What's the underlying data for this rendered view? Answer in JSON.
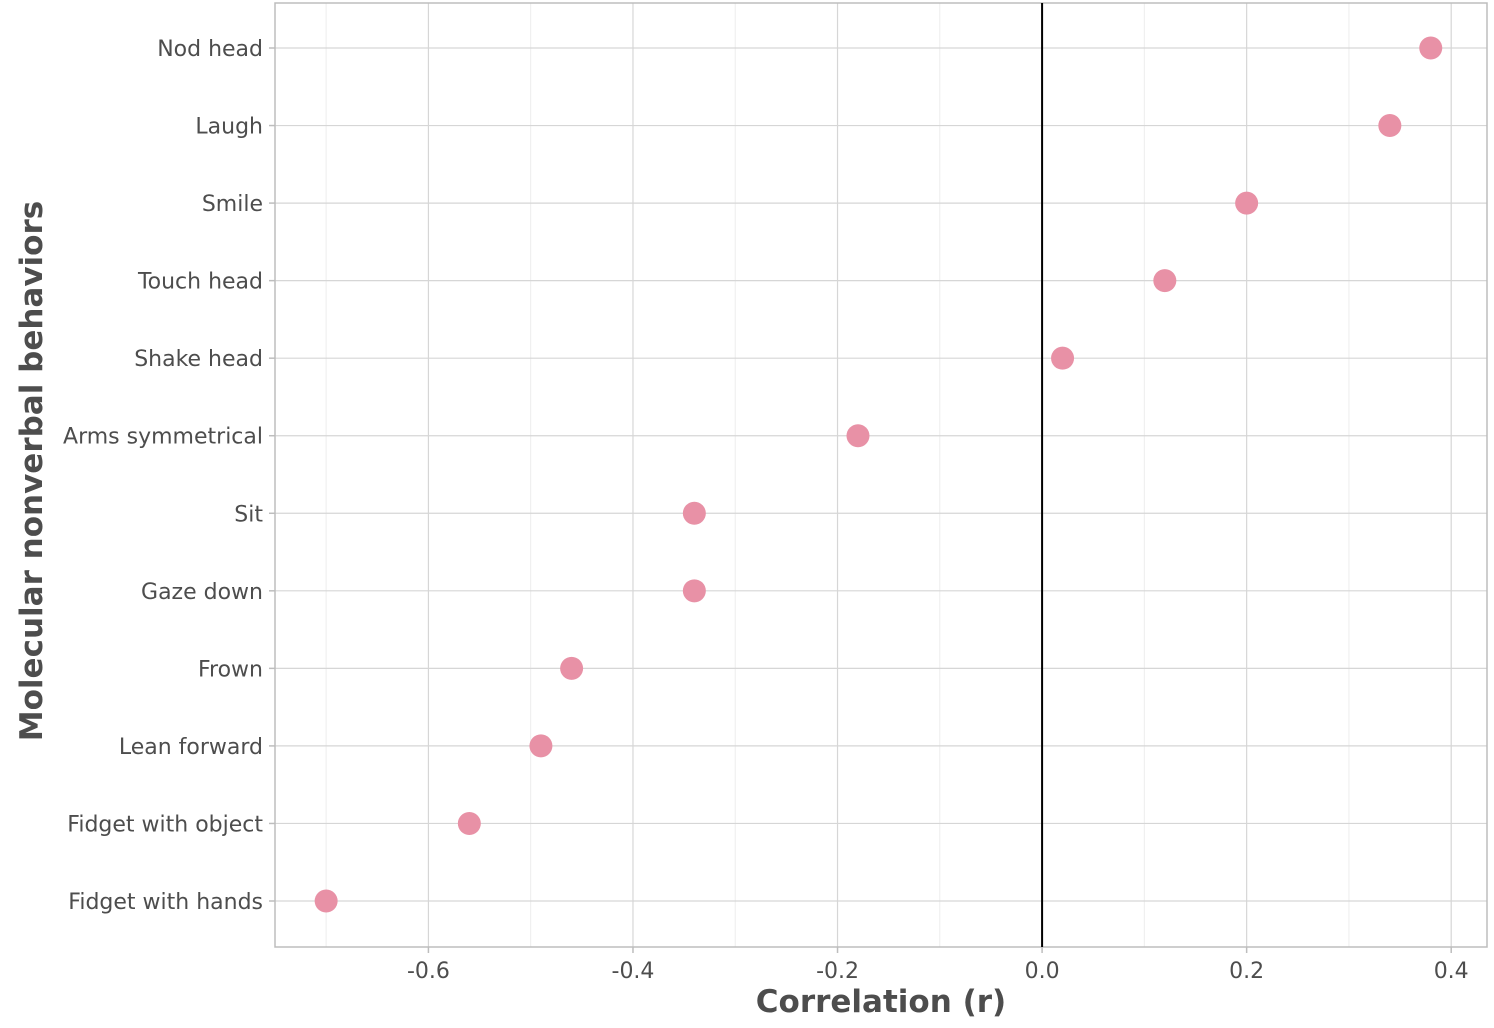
{
  "chart_data": {
    "type": "scatter",
    "title": "",
    "xlabel": "Correlation (r)",
    "ylabel": "Molecular nonverbal behaviors",
    "xlim": [
      -0.75,
      0.435
    ],
    "xticks": [
      -0.6,
      -0.4,
      -0.2,
      0.0,
      0.2,
      0.4
    ],
    "xtick_labels": [
      "-0.6",
      "-0.4",
      "-0.2",
      "0.0",
      "0.2",
      "0.4"
    ],
    "grid": true,
    "reference_line_x": 0.0,
    "point_color": "#e891a6",
    "categories": [
      "Nod head",
      "Laugh",
      "Smile",
      "Touch head",
      "Shake head",
      "Arms symmetrical",
      "Sit",
      "Gaze down",
      "Frown",
      "Lean forward",
      "Fidget with object",
      "Fidget with hands"
    ],
    "values": [
      0.38,
      0.34,
      0.2,
      0.12,
      0.02,
      -0.18,
      -0.34,
      -0.34,
      -0.46,
      -0.49,
      -0.56,
      -0.7
    ]
  }
}
